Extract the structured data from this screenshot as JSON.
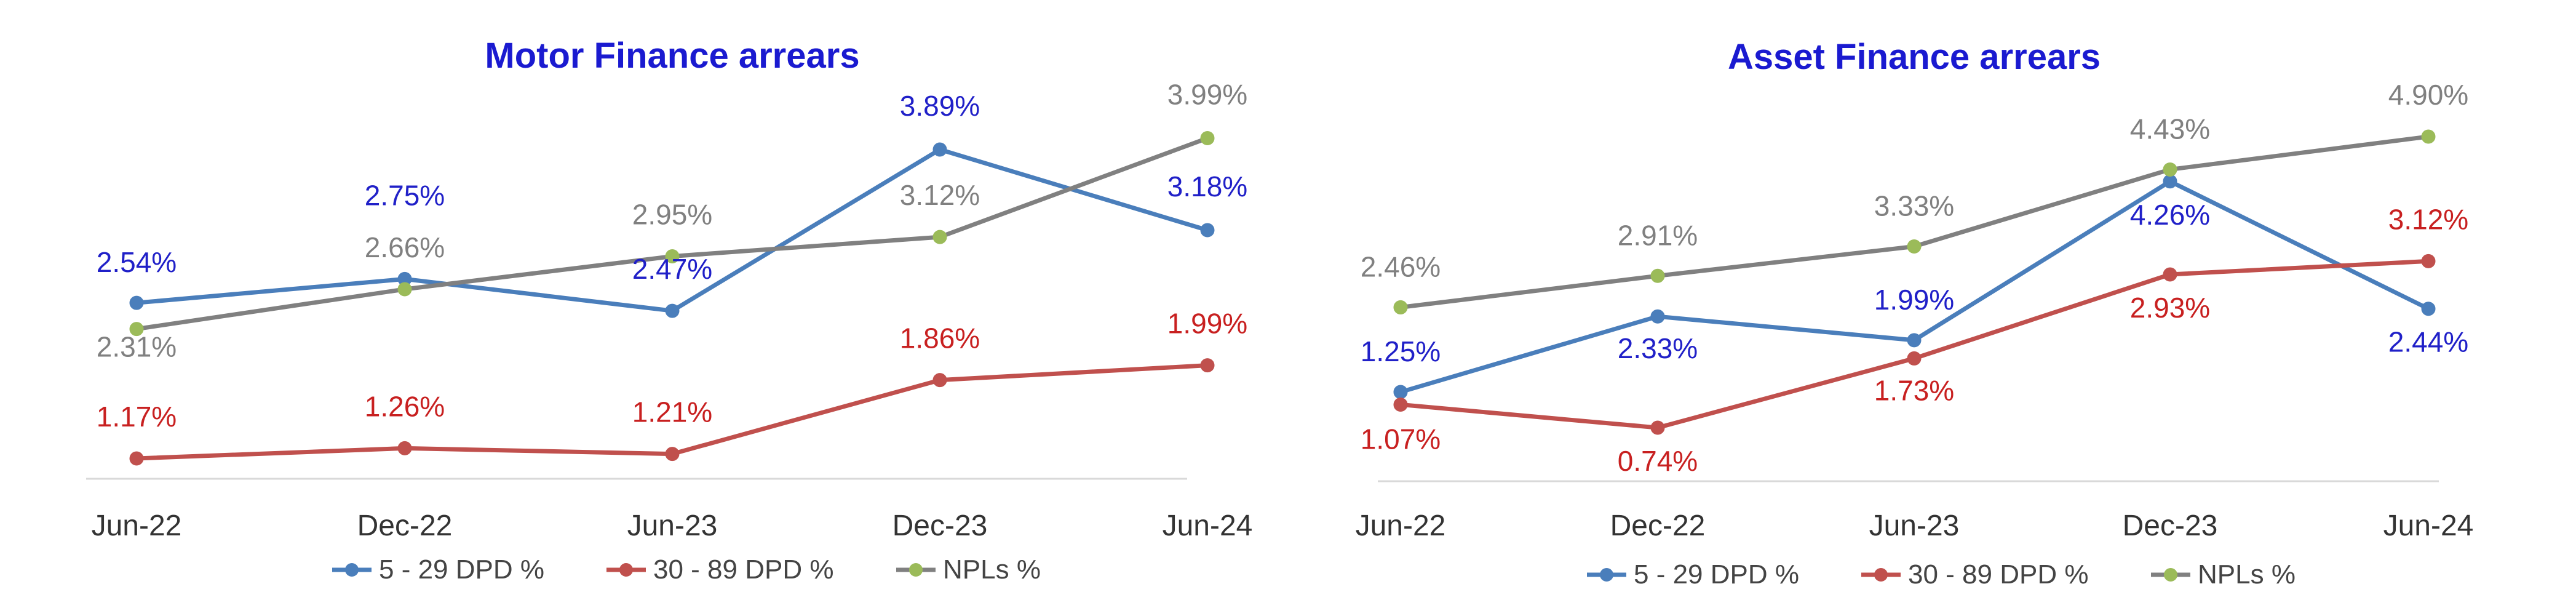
{
  "chart_data": [
    {
      "type": "line",
      "title": "Motor Finance arrears",
      "xlabel": "",
      "ylabel": "",
      "categories": [
        "Jun-22",
        "Dec-22",
        "Jun-23",
        "Dec-23",
        "Jun-24"
      ],
      "ylim": [
        0.5,
        4.5
      ],
      "grid": false,
      "legend_position": "bottom",
      "series": [
        {
          "name": "5 - 29 DPD %",
          "color": "#4a7ebb",
          "label_color": "#2020c8",
          "values": [
            2.54,
            2.75,
            2.47,
            3.89,
            3.18
          ],
          "labels": [
            "2.54%",
            "2.75%",
            "2.47%",
            "3.89%",
            "3.18%"
          ]
        },
        {
          "name": "30 - 89 DPD %",
          "color": "#c0504d",
          "label_color": "#c82020",
          "values": [
            1.17,
            1.26,
            1.21,
            1.86,
            1.99
          ],
          "labels": [
            "1.17%",
            "1.26%",
            "1.21%",
            "1.86%",
            "1.99%"
          ]
        },
        {
          "name": "NPLs %",
          "color": "#808080",
          "marker_color": "#9bbb59",
          "label_color": "#808080",
          "values": [
            2.31,
            2.66,
            2.95,
            3.12,
            3.99
          ],
          "labels": [
            "2.31%",
            "2.66%",
            "2.95%",
            "3.12%",
            "3.99%"
          ]
        }
      ]
    },
    {
      "type": "line",
      "title": "Asset Finance arrears",
      "xlabel": "",
      "ylabel": "",
      "categories": [
        "Jun-22",
        "Dec-22",
        "Jun-23",
        "Dec-23",
        "Jun-24"
      ],
      "ylim": [
        0.2,
        5.2
      ],
      "grid": false,
      "legend_position": "bottom",
      "series": [
        {
          "name": "5 - 29 DPD %",
          "color": "#4a7ebb",
          "label_color": "#2020c8",
          "values": [
            1.25,
            2.33,
            1.99,
            4.26,
            2.44
          ],
          "labels": [
            "1.25%",
            "2.33%",
            "1.99%",
            "4.26%",
            "2.44%"
          ]
        },
        {
          "name": "30 - 89 DPD %",
          "color": "#c0504d",
          "label_color": "#c82020",
          "values": [
            1.07,
            0.74,
            1.73,
            2.93,
            3.12
          ],
          "labels": [
            "1.07%",
            "0.74%",
            "1.73%",
            "2.93%",
            "3.12%"
          ]
        },
        {
          "name": "NPLs %",
          "color": "#808080",
          "marker_color": "#9bbb59",
          "label_color": "#808080",
          "values": [
            2.46,
            2.91,
            3.33,
            4.43,
            4.9
          ],
          "labels": [
            "2.46%",
            "2.91%",
            "3.33%",
            "4.43%",
            "4.90%"
          ]
        }
      ]
    }
  ],
  "colors": {
    "title": "#1a1ad0",
    "axis": "#d9d9d9"
  }
}
